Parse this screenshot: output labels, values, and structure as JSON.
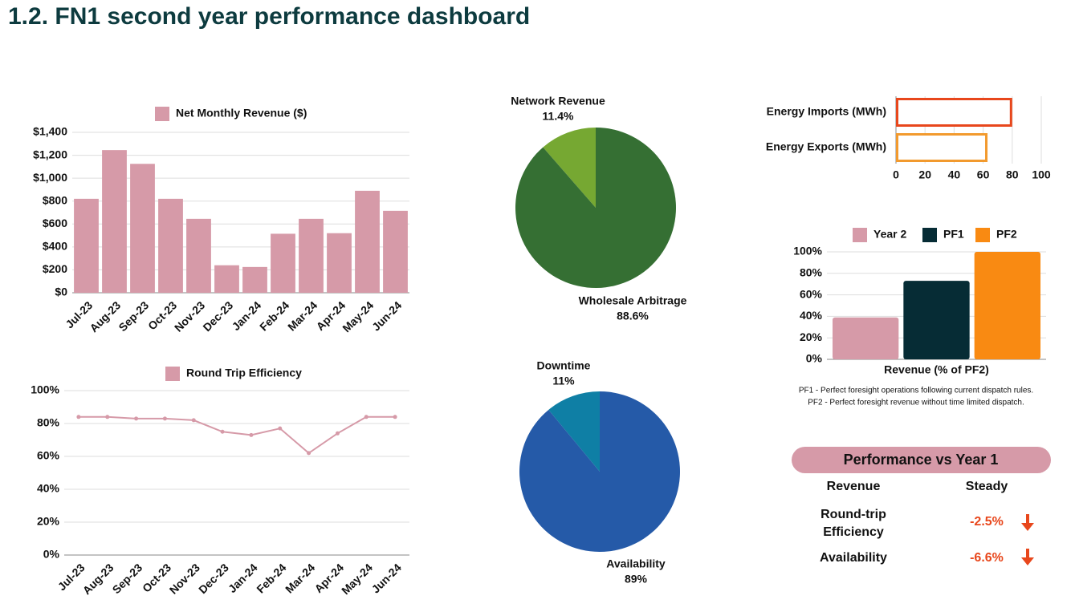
{
  "title": "1.2.  FN1 second year performance dashboard",
  "chart_data": [
    {
      "type": "bar",
      "categories": [
        "Jul-23",
        "Aug-23",
        "Sep-23",
        "Oct-23",
        "Nov-23",
        "Dec-23",
        "Jan-24",
        "Feb-24",
        "Mar-24",
        "Apr-24",
        "May-24",
        "Jun-24"
      ],
      "series": [
        {
          "name": "Net Monthly Revenue ($)",
          "color": "#d69aa8",
          "values": [
            820,
            1245,
            1125,
            820,
            645,
            240,
            225,
            515,
            645,
            520,
            890,
            715
          ]
        }
      ],
      "ylim": [
        0,
        1400
      ],
      "yticks": [
        {
          "value": 0,
          "label": "$0"
        },
        {
          "value": 200,
          "label": "$200"
        },
        {
          "value": 400,
          "label": "$400"
        },
        {
          "value": 600,
          "label": "$600"
        },
        {
          "value": 800,
          "label": "$800"
        },
        {
          "value": 1000,
          "label": "$1,000"
        },
        {
          "value": 1200,
          "label": "$1,200"
        },
        {
          "value": 1400,
          "label": "$1,400"
        }
      ],
      "grid": true,
      "legend": "top"
    },
    {
      "type": "line",
      "categories": [
        "Jul-23",
        "Aug-23",
        "Sep-23",
        "Oct-23",
        "Nov-23",
        "Dec-23",
        "Jan-24",
        "Feb-24",
        "Mar-24",
        "Apr-24",
        "May-24",
        "Jun-24"
      ],
      "series": [
        {
          "name": "Round Trip Efficiency",
          "color": "#d69aa8",
          "values": [
            84,
            84,
            83,
            83,
            82,
            75,
            73,
            77,
            62,
            74,
            84,
            84
          ]
        }
      ],
      "ylim": [
        0,
        100
      ],
      "yticks": [
        {
          "value": 0,
          "label": "0%"
        },
        {
          "value": 20,
          "label": "20%"
        },
        {
          "value": 40,
          "label": "40%"
        },
        {
          "value": 60,
          "label": "60%"
        },
        {
          "value": 80,
          "label": "80%"
        },
        {
          "value": 100,
          "label": "100%"
        }
      ],
      "grid": true,
      "legend": "top"
    },
    {
      "type": "pie",
      "categories": [
        "Network Revenue",
        "Wholesale Arbitrage"
      ],
      "values": [
        11.4,
        88.6
      ],
      "value_labels": [
        "11.4%",
        "88.6%"
      ],
      "colors": [
        "#76a832",
        "#356f33"
      ]
    },
    {
      "type": "pie",
      "categories": [
        "Downtime",
        "Availability"
      ],
      "values": [
        11,
        89
      ],
      "value_labels": [
        "11%",
        "89%"
      ],
      "colors": [
        "#0f7fa5",
        "#255aa8"
      ]
    },
    {
      "type": "hbar",
      "categories": [
        "Energy Imports (MWh)",
        "Energy Exports (MWh)"
      ],
      "values": [
        80,
        63
      ],
      "colors": [
        "#e8471c",
        "#f29a2e"
      ],
      "outline": true,
      "xlim": [
        0,
        100
      ],
      "xticks": [
        0,
        20,
        40,
        60,
        80,
        100
      ],
      "grid": true
    },
    {
      "type": "bar",
      "categories": [
        "Revenue (% of PF2)"
      ],
      "series": [
        {
          "name": "Year 2",
          "color": "#d69aa8",
          "values": [
            39
          ]
        },
        {
          "name": "PF1",
          "color": "#062c35",
          "values": [
            73
          ]
        },
        {
          "name": "PF2",
          "color": "#f98a12",
          "values": [
            100
          ]
        }
      ],
      "ylim": [
        0,
        100
      ],
      "yticks": [
        {
          "value": 0,
          "label": "0%"
        },
        {
          "value": 20,
          "label": "20%"
        },
        {
          "value": 40,
          "label": "40%"
        },
        {
          "value": 60,
          "label": "60%"
        },
        {
          "value": 80,
          "label": "80%"
        },
        {
          "value": 100,
          "label": "100%"
        }
      ],
      "grid": true,
      "legend": "top",
      "notes": [
        "PF1 - Perfect foresight operations following current dispatch rules.",
        "PF2 - Perfect foresight revenue without time limited dispatch."
      ]
    }
  ],
  "performance": {
    "title": "Performance vs Year 1",
    "rows": [
      [
        "Revenue",
        "Steady"
      ],
      [
        "Round-trip Efficiency",
        "-2.5%"
      ],
      [
        "Availability",
        "-6.6%"
      ]
    ]
  }
}
